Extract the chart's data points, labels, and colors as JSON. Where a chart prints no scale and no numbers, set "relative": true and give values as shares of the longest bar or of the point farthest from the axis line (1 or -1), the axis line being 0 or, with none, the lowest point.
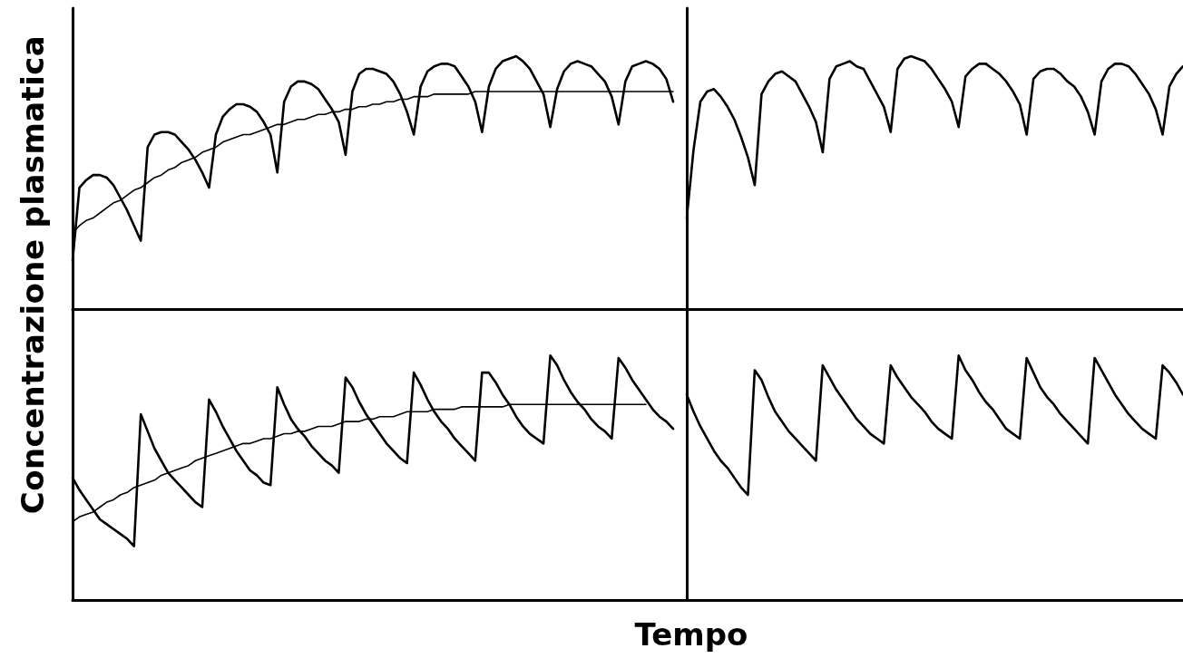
{
  "chart_data": [
    {
      "type": "line",
      "relative": true,
      "ylabel": "Concentrazione plasmatica",
      "categories": [
        null,
        null,
        null,
        null,
        null,
        null,
        null,
        null,
        null,
        null,
        null,
        null,
        null,
        null,
        null,
        null,
        null,
        null,
        null,
        null,
        null,
        null,
        null,
        null,
        null,
        null,
        null,
        null,
        null,
        null,
        null,
        null,
        null,
        null,
        null,
        null,
        null,
        null,
        null,
        null,
        null,
        null,
        null,
        null,
        null,
        null,
        null,
        null,
        null,
        null,
        null,
        null,
        null,
        null,
        null,
        null,
        null,
        null,
        null,
        null,
        null,
        null,
        null,
        null,
        null,
        null,
        null,
        null,
        null,
        null,
        null,
        null,
        null,
        null,
        null,
        null,
        null,
        null,
        null,
        null,
        null,
        null,
        null,
        null,
        null,
        null,
        null,
        null,
        null
      ],
      "series": [
        {
          "color": "#000000",
          "values": [
            0.19,
            0.48,
            0.51,
            0.53,
            0.53,
            0.52,
            0.49,
            0.44,
            0.39,
            0.33,
            0.27,
            0.64,
            0.69,
            0.7,
            0.7,
            0.69,
            0.66,
            0.63,
            0.59,
            0.54,
            0.48,
            0.69,
            0.76,
            0.79,
            0.81,
            0.81,
            0.8,
            0.78,
            0.74,
            0.69,
            0.54,
            0.82,
            0.88,
            0.9,
            0.9,
            0.89,
            0.87,
            0.83,
            0.79,
            0.74,
            0.61,
            0.86,
            0.93,
            0.95,
            0.95,
            0.94,
            0.93,
            0.9,
            0.85,
            0.78,
            0.69,
            0.88,
            0.94,
            0.96,
            0.97,
            0.97,
            0.96,
            0.92,
            0.88,
            0.82,
            0.7,
            0.88,
            0.95,
            0.98,
            0.99,
            1,
            0.98,
            0.95,
            0.9,
            0.85,
            0.72,
            0.87,
            0.94,
            0.97,
            0.98,
            0.97,
            0.96,
            0.93,
            0.9,
            0.84,
            0.73,
            0.9,
            0.96,
            0.97,
            0.98,
            0.97,
            0.95,
            0.91,
            0.82
          ]
        },
        {
          "color": "#000000",
          "values": [
            0.3,
            0.33,
            0.35,
            0.36,
            0.38,
            0.4,
            0.42,
            0.43,
            0.45,
            0.47,
            0.48,
            0.5,
            0.52,
            0.53,
            0.55,
            0.56,
            0.58,
            0.59,
            0.6,
            0.62,
            0.63,
            0.64,
            0.66,
            0.67,
            0.68,
            0.69,
            0.69,
            0.7,
            0.71,
            0.72,
            0.73,
            0.73,
            0.74,
            0.75,
            0.75,
            0.76,
            0.77,
            0.77,
            0.78,
            0.78,
            0.79,
            0.79,
            0.8,
            0.8,
            0.81,
            0.81,
            0.82,
            0.82,
            0.83,
            0.83,
            0.84,
            0.84,
            0.84,
            0.85,
            0.85,
            0.85,
            0.85,
            0.85,
            0.85,
            0.86,
            0.86,
            0.86,
            0.86,
            0.86,
            0.86,
            0.86,
            0.86,
            0.86,
            0.86,
            0.86,
            0.86,
            0.86,
            0.86,
            0.86,
            0.86,
            0.86,
            0.86,
            0.86,
            0.86,
            0.86,
            0.86,
            0.86,
            0.86,
            0.86,
            0.86,
            0.86,
            0.86,
            0.86,
            0.86
          ]
        }
      ]
    },
    {
      "type": "line",
      "relative": true,
      "categories": [
        null,
        null,
        null,
        null,
        null,
        null,
        null,
        null,
        null,
        null,
        null,
        null,
        null,
        null,
        null,
        null,
        null,
        null,
        null,
        null,
        null,
        null,
        null,
        null,
        null,
        null,
        null,
        null,
        null,
        null,
        null,
        null,
        null,
        null,
        null,
        null,
        null,
        null,
        null,
        null,
        null,
        null,
        null,
        null,
        null,
        null,
        null,
        null,
        null,
        null,
        null,
        null,
        null,
        null,
        null,
        null,
        null,
        null,
        null,
        null,
        null,
        null,
        null,
        null,
        null,
        null,
        null,
        null,
        null,
        null,
        null,
        null,
        null,
        null
      ],
      "series": [
        {
          "color": "#000000",
          "values": [
            0.36,
            0.63,
            0.82,
            0.86,
            0.87,
            0.84,
            0.8,
            0.75,
            0.68,
            0.6,
            0.49,
            0.85,
            0.9,
            0.93,
            0.94,
            0.92,
            0.9,
            0.85,
            0.8,
            0.74,
            0.62,
            0.91,
            0.96,
            0.97,
            0.98,
            0.96,
            0.95,
            0.9,
            0.85,
            0.8,
            0.7,
            0.95,
            0.99,
            1,
            0.99,
            0.98,
            0.95,
            0.91,
            0.87,
            0.82,
            0.72,
            0.92,
            0.95,
            0.97,
            0.97,
            0.95,
            0.93,
            0.9,
            0.86,
            0.81,
            0.69,
            0.91,
            0.94,
            0.95,
            0.95,
            0.93,
            0.9,
            0.88,
            0.84,
            0.78,
            0.69,
            0.9,
            0.95,
            0.97,
            0.97,
            0.96,
            0.93,
            0.89,
            0.85,
            0.79,
            0.69,
            0.88,
            0.93,
            0.96
          ]
        }
      ]
    },
    {
      "type": "line",
      "relative": true,
      "xlabel": "Tempo",
      "categories": [
        null,
        null,
        null,
        null,
        null,
        null,
        null,
        null,
        null,
        null,
        null,
        null,
        null,
        null,
        null,
        null,
        null,
        null,
        null,
        null,
        null,
        null,
        null,
        null,
        null,
        null,
        null,
        null,
        null,
        null,
        null,
        null,
        null,
        null,
        null,
        null,
        null,
        null,
        null,
        null,
        null,
        null,
        null,
        null,
        null,
        null,
        null,
        null,
        null,
        null,
        null,
        null,
        null,
        null,
        null,
        null,
        null,
        null,
        null,
        null,
        null,
        null,
        null,
        null,
        null,
        null,
        null,
        null,
        null,
        null,
        null,
        null,
        null,
        null,
        null,
        null,
        null,
        null,
        null,
        null,
        null,
        null,
        null,
        null,
        null,
        null,
        null,
        null,
        null
      ],
      "series": [
        {
          "color": "#000000",
          "values": [
            0.5,
            0.45,
            0.41,
            0.37,
            0.33,
            0.31,
            0.29,
            0.27,
            0.25,
            0.22,
            0.76,
            0.69,
            0.62,
            0.57,
            0.52,
            0.49,
            0.46,
            0.43,
            0.4,
            0.38,
            0.82,
            0.77,
            0.71,
            0.66,
            0.61,
            0.57,
            0.53,
            0.51,
            0.48,
            0.47,
            0.87,
            0.8,
            0.74,
            0.7,
            0.67,
            0.63,
            0.6,
            0.57,
            0.55,
            0.52,
            0.91,
            0.87,
            0.81,
            0.76,
            0.72,
            0.68,
            0.64,
            0.61,
            0.58,
            0.56,
            0.93,
            0.88,
            0.82,
            0.77,
            0.73,
            0.7,
            0.66,
            0.63,
            0.6,
            0.57,
            0.93,
            0.93,
            0.89,
            0.84,
            0.8,
            0.75,
            0.71,
            0.68,
            0.66,
            0.64,
            1,
            0.96,
            0.9,
            0.85,
            0.81,
            0.78,
            0.74,
            0.71,
            0.69,
            0.66,
            0.99,
            0.95,
            0.9,
            0.86,
            0.82,
            0.78,
            0.75,
            0.73,
            0.7
          ]
        },
        {
          "color": "#000000",
          "values": [
            0.32,
            0.34,
            0.35,
            0.36,
            0.38,
            0.4,
            0.41,
            0.43,
            0.44,
            0.46,
            0.47,
            0.48,
            0.49,
            0.51,
            0.52,
            0.53,
            0.54,
            0.55,
            0.57,
            0.58,
            0.59,
            0.6,
            0.61,
            0.62,
            0.63,
            0.64,
            0.64,
            0.65,
            0.66,
            0.66,
            0.67,
            0.68,
            0.68,
            0.69,
            0.69,
            0.7,
            0.71,
            0.71,
            0.71,
            0.72,
            0.73,
            0.73,
            0.73,
            0.74,
            0.74,
            0.75,
            0.75,
            0.75,
            0.76,
            0.77,
            0.77,
            0.77,
            0.77,
            0.78,
            0.78,
            0.78,
            0.78,
            0.79,
            0.79,
            0.79,
            0.79,
            0.79,
            0.79,
            0.79,
            0.8,
            0.8,
            0.8,
            0.8,
            0.8,
            0.8,
            0.8,
            0.8,
            0.8,
            0.8,
            0.8,
            0.8,
            0.8,
            0.8,
            0.8,
            0.8,
            0.8,
            0.8,
            0.8,
            0.8,
            0.8,
            null,
            null,
            null,
            null
          ]
        }
      ]
    },
    {
      "type": "line",
      "relative": true,
      "categories": [
        null,
        null,
        null,
        null,
        null,
        null,
        null,
        null,
        null,
        null,
        null,
        null,
        null,
        null,
        null,
        null,
        null,
        null,
        null,
        null,
        null,
        null,
        null,
        null,
        null,
        null,
        null,
        null,
        null,
        null,
        null,
        null,
        null,
        null,
        null,
        null,
        null,
        null,
        null,
        null,
        null,
        null,
        null,
        null,
        null,
        null,
        null,
        null,
        null,
        null,
        null,
        null,
        null,
        null,
        null,
        null,
        null,
        null,
        null,
        null,
        null,
        null,
        null,
        null,
        null,
        null,
        null,
        null,
        null,
        null,
        null,
        null,
        null,
        null
      ],
      "series": [
        {
          "color": "#000000",
          "values": [
            0.84,
            0.77,
            0.71,
            0.66,
            0.61,
            0.57,
            0.54,
            0.5,
            0.46,
            0.43,
            0.94,
            0.9,
            0.83,
            0.77,
            0.73,
            0.69,
            0.66,
            0.63,
            0.6,
            0.57,
            0.96,
            0.91,
            0.86,
            0.82,
            0.78,
            0.74,
            0.71,
            0.68,
            0.66,
            0.64,
            0.96,
            0.91,
            0.87,
            0.83,
            0.8,
            0.77,
            0.73,
            0.7,
            0.68,
            0.66,
            1,
            0.94,
            0.9,
            0.85,
            0.81,
            0.78,
            0.74,
            0.7,
            0.68,
            0.66,
            0.99,
            0.93,
            0.87,
            0.83,
            0.8,
            0.76,
            0.73,
            0.7,
            0.67,
            0.64,
            0.99,
            0.94,
            0.89,
            0.84,
            0.8,
            0.76,
            0.73,
            0.7,
            0.68,
            0.66,
            0.96,
            0.93,
            0.89,
            0.84
          ]
        }
      ]
    }
  ]
}
